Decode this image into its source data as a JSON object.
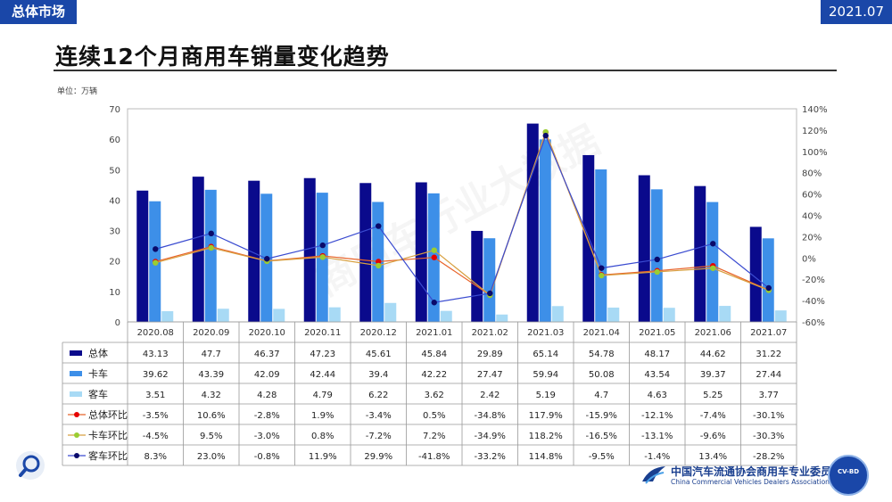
{
  "header": {
    "section": "总体市场",
    "date": "2021.07"
  },
  "title": "连续12个月商用车销量变化趋势",
  "unit": "单位：万辆",
  "logo": {
    "cn": "中国汽车流通协会商用车专业委员会",
    "en": "China Commercial Vehicles Dealers Association",
    "seal": "CV-BD"
  },
  "watermark": "商用车行业大数据",
  "colors": {
    "total": "#0a0a8c",
    "truck": "#3d8fe8",
    "bus": "#a8daf5",
    "total_ratio_line": "#e8642a",
    "total_ratio_dot": "#e60000",
    "truck_ratio_line": "#d8a040",
    "truck_ratio_dot": "#9acd32",
    "bus_ratio_line": "#3a4bd0",
    "bus_ratio_dot": "#0a0a6a"
  },
  "chart_data": {
    "type": "bar",
    "categories": [
      "2020.08",
      "2020.09",
      "2020.10",
      "2020.11",
      "2020.12",
      "2021.01",
      "2021.02",
      "2021.03",
      "2021.04",
      "2021.05",
      "2021.06",
      "2021.07"
    ],
    "y_left": {
      "ylim": [
        0,
        70
      ],
      "ticks": [
        "0",
        "10",
        "20",
        "30",
        "40",
        "50",
        "60",
        "70"
      ]
    },
    "y_right": {
      "ylim": [
        -60,
        140
      ],
      "ticks": [
        "-60%",
        "-40%",
        "-20%",
        "0%",
        "20%",
        "40%",
        "60%",
        "80%",
        "100%",
        "120%",
        "140%"
      ]
    },
    "bar_series": [
      {
        "name": "总体",
        "values": [
          43.13,
          47.7,
          46.37,
          47.23,
          45.61,
          45.84,
          29.89,
          65.14,
          54.78,
          48.17,
          44.62,
          31.22
        ],
        "labels": [
          "43.13",
          "47.7",
          "46.37",
          "47.23",
          "45.61",
          "45.84",
          "29.89",
          "65.14",
          "54.78",
          "48.17",
          "44.62",
          "31.22"
        ]
      },
      {
        "name": "卡车",
        "values": [
          39.62,
          43.39,
          42.09,
          42.44,
          39.4,
          42.22,
          27.47,
          59.94,
          50.08,
          43.54,
          39.37,
          27.44
        ],
        "labels": [
          "39.62",
          "43.39",
          "42.09",
          "42.44",
          "39.4",
          "42.22",
          "27.47",
          "59.94",
          "50.08",
          "43.54",
          "39.37",
          "27.44"
        ]
      },
      {
        "name": "客车",
        "values": [
          3.51,
          4.32,
          4.28,
          4.79,
          6.22,
          3.62,
          2.42,
          5.19,
          4.7,
          4.63,
          5.25,
          3.77
        ],
        "labels": [
          "3.51",
          "4.32",
          "4.28",
          "4.79",
          "6.22",
          "3.62",
          "2.42",
          "5.19",
          "4.7",
          "4.63",
          "5.25",
          "3.77"
        ]
      }
    ],
    "line_series": [
      {
        "name": "总体环比",
        "values": [
          -3.5,
          10.6,
          -2.8,
          1.9,
          -3.4,
          0.5,
          -34.8,
          117.9,
          -15.9,
          -12.1,
          -7.4,
          -30.1
        ],
        "labels": [
          "-3.5%",
          "10.6%",
          "-2.8%",
          "1.9%",
          "-3.4%",
          "0.5%",
          "-34.8%",
          "117.9%",
          "-15.9%",
          "-12.1%",
          "-7.4%",
          "-30.1%"
        ]
      },
      {
        "name": "卡车环比",
        "values": [
          -4.5,
          9.5,
          -3.0,
          0.8,
          -7.2,
          7.2,
          -34.9,
          118.2,
          -16.5,
          -13.1,
          -9.6,
          -30.3
        ],
        "labels": [
          "-4.5%",
          "9.5%",
          "-3.0%",
          "0.8%",
          "-7.2%",
          "7.2%",
          "-34.9%",
          "118.2%",
          "-16.5%",
          "-13.1%",
          "-9.6%",
          "-30.3%"
        ]
      },
      {
        "name": "客车环比",
        "values": [
          8.3,
          23.0,
          -0.8,
          11.9,
          29.9,
          -41.8,
          -33.2,
          114.8,
          -9.5,
          -1.4,
          13.4,
          -28.2
        ],
        "labels": [
          "8.3%",
          "23.0%",
          "-0.8%",
          "11.9%",
          "29.9%",
          "-41.8%",
          "-33.2%",
          "114.8%",
          "-9.5%",
          "-1.4%",
          "13.4%",
          "-28.2%"
        ]
      }
    ],
    "grid": false,
    "legend": "table-below"
  }
}
